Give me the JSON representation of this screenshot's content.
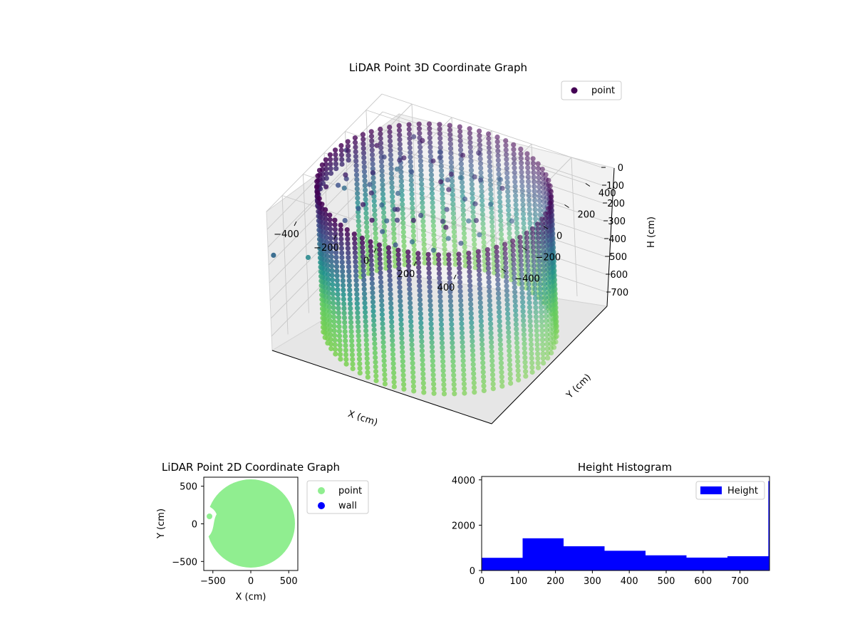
{
  "chart_data": [
    {
      "type": "scatter",
      "title": "LiDAR Point 3D Coordinate Graph",
      "xlabel": "X (cm)",
      "ylabel": "Y (cm)",
      "zlabel": "H (cm)",
      "xticks": [
        "−400",
        "−200",
        "0",
        "200",
        "400"
      ],
      "yticks": [
        "400",
        "200",
        "0",
        "−200",
        "−400"
      ],
      "zticks": [
        "0",
        "100",
        "200",
        "300",
        "400",
        "500",
        "600",
        "700"
      ],
      "xlim": [
        -550,
        550
      ],
      "ylim": [
        -550,
        550
      ],
      "zlim": [
        0,
        780
      ],
      "z_inverted": true,
      "grid": true,
      "colormap": "viridis",
      "legend": {
        "entries": [
          "point"
        ],
        "placement": "top-right"
      },
      "description_points": "cylindrical wall of points, radius about 520 cm, heights 0 to 780 cm",
      "colors": {
        "point": "#440154",
        "low": "#5ec962",
        "mid": "#21918c",
        "high": "#3b528b"
      }
    },
    {
      "type": "scatter",
      "title": "LiDAR Point 2D Coordinate Graph",
      "xlabel": "X (cm)",
      "ylabel": "Y (cm)",
      "xticks": [
        "−500",
        "0",
        "500"
      ],
      "yticks": [
        "500",
        "0",
        "−500"
      ],
      "xlim": [
        -620,
        620
      ],
      "ylim": [
        -620,
        620
      ],
      "legend": {
        "entries": [
          "point",
          "wall"
        ],
        "placement": "outside-right"
      },
      "colors": {
        "point": "#90ee90",
        "wall": "#0000ff"
      }
    },
    {
      "type": "bar",
      "title": "Height Histogram",
      "xlabel": "",
      "ylabel": "",
      "xticks": [
        "0",
        "100",
        "200",
        "300",
        "400",
        "500",
        "600",
        "700"
      ],
      "yticks": [
        "0",
        "2000",
        "4000"
      ],
      "xlim": [
        0,
        780
      ],
      "ylim": [
        0,
        4150
      ],
      "bin_edges": [
        0,
        111,
        222,
        333,
        444,
        555,
        666,
        777,
        780
      ],
      "values": [
        560,
        1420,
        1070,
        870,
        670,
        570,
        630,
        3950
      ],
      "legend": {
        "entries": [
          "Height"
        ],
        "placement": "top-right"
      },
      "colors": {
        "bar": "#0000ff"
      }
    }
  ]
}
